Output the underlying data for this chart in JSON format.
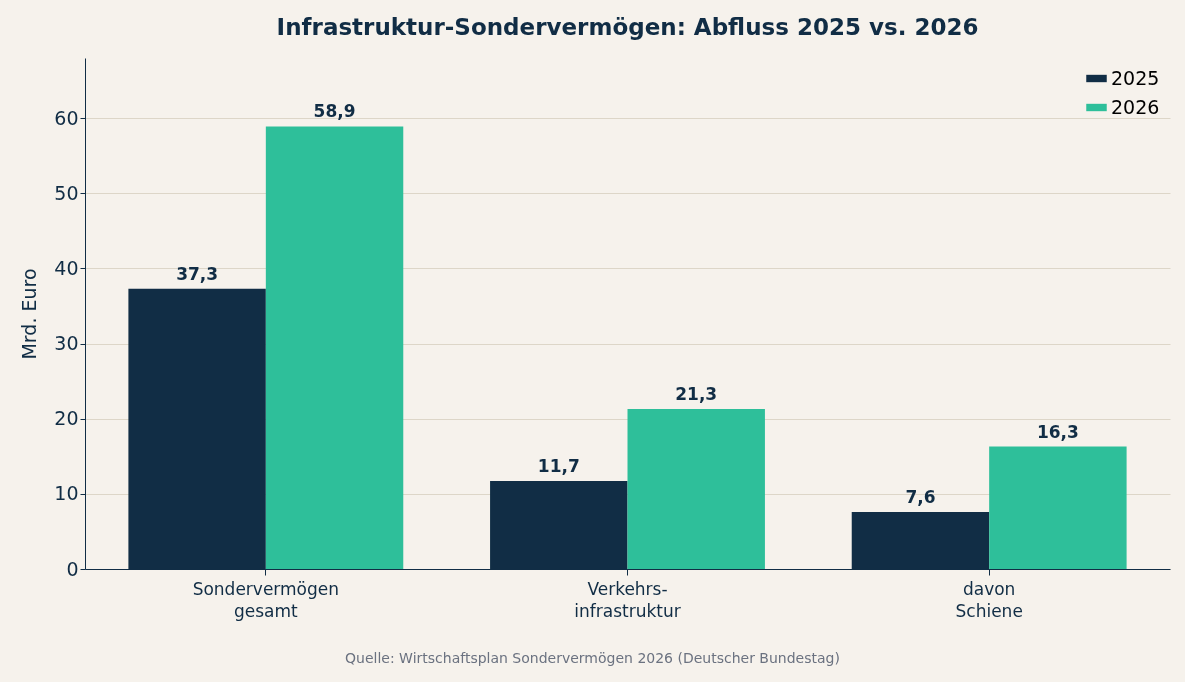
{
  "chart_data": {
    "type": "bar",
    "title": "Infrastruktur-Sondervermögen: Abfluss 2025 vs. 2026",
    "ylabel": "Mrd. Euro",
    "categories": [
      "Sondervermögen\ngesamt",
      "Verkehrs-\ninfrastruktur",
      "davon\nSchiene"
    ],
    "series": [
      {
        "name": "2025",
        "color": "#112d45",
        "values": [
          37.3,
          11.7,
          7.6
        ],
        "value_labels": [
          "37,3",
          "11,7",
          "7,6"
        ]
      },
      {
        "name": "2026",
        "color": "#2ebf9a",
        "values": [
          58.9,
          21.3,
          16.3
        ],
        "value_labels": [
          "58,9",
          "21,3",
          "16,3"
        ]
      }
    ],
    "ylim": [
      0,
      68
    ],
    "yticks": [
      0,
      10,
      20,
      30,
      40,
      50,
      60
    ],
    "grid": "y",
    "legend": "top right",
    "annotations": [
      "Quelle: Wirtschaftsplan Sondervermögen 2026 (Deutscher Bundestag)"
    ]
  }
}
